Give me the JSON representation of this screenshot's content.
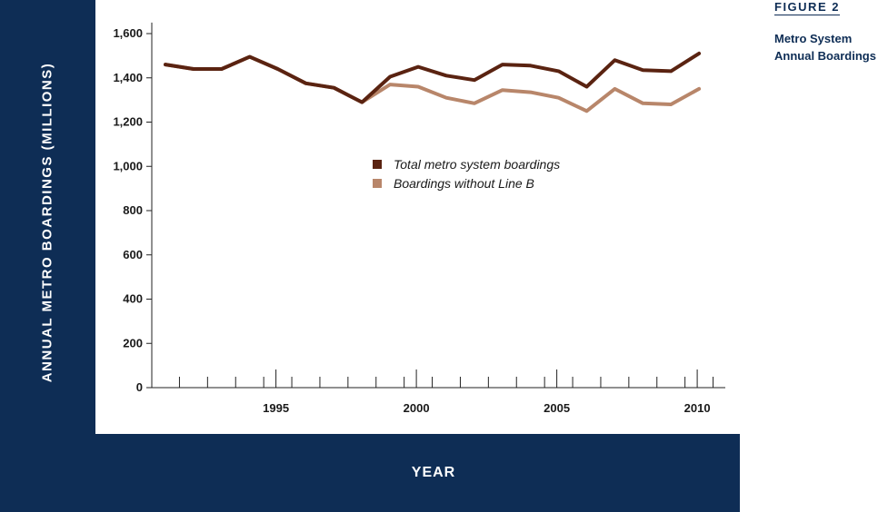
{
  "figure": {
    "label": "FIGURE 2",
    "caption": "Metro System Annual Boardings"
  },
  "chart_data": {
    "type": "line",
    "title": "",
    "xlabel": "YEAR",
    "ylabel": "ANNUAL METRO BOARDINGS (MILLIONS)",
    "ylim": [
      0,
      1650
    ],
    "yticks": [
      0,
      200,
      400,
      600,
      800,
      1000,
      1200,
      1400,
      1600
    ],
    "ytick_labels": [
      "0",
      "200",
      "400",
      "600",
      "800",
      "1,000",
      "1,200",
      "1,400",
      "1,600"
    ],
    "xlim": [
      1991,
      2011.5
    ],
    "xtick_labels": [
      "1995",
      "2000",
      "2005",
      "2010"
    ],
    "xtick_values": [
      1995,
      2000,
      2005,
      2010
    ],
    "grid": false,
    "legend_position": "center",
    "x": [
      1991,
      1992,
      1993,
      1994,
      1995,
      1996,
      1997,
      1998,
      1999,
      2000,
      2001,
      2002,
      2003,
      2004,
      2005,
      2006,
      2007,
      2008,
      2009,
      2010,
      2011
    ],
    "series": [
      {
        "name": "Total metro system boardings",
        "color": "#5a2311",
        "values": [
          1460,
          1440,
          1440,
          1495,
          1440,
          1375,
          1355,
          1290,
          1405,
          1450,
          1410,
          1390,
          1460,
          1455,
          1430,
          1360,
          1480,
          1435,
          1430,
          1510,
          null
        ]
      },
      {
        "name": "Boardings without Line B",
        "color": "#b8866a",
        "values": [
          1460,
          1440,
          1440,
          1495,
          1440,
          1375,
          1355,
          1290,
          1370,
          1360,
          1310,
          1285,
          1345,
          1335,
          1310,
          1250,
          1350,
          1285,
          1280,
          1350,
          null
        ]
      }
    ]
  }
}
